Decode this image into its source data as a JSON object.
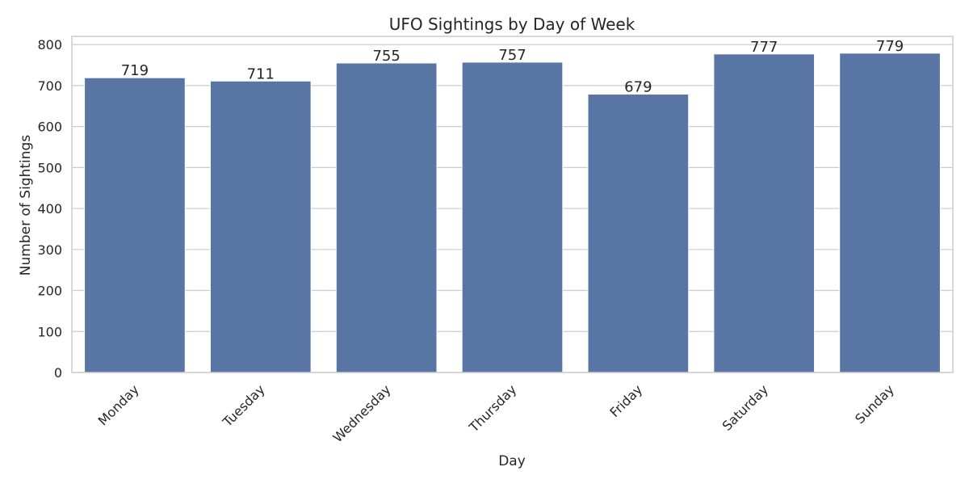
{
  "chart_data": {
    "type": "bar",
    "title": "UFO Sightings by Day of Week",
    "xlabel": "Day",
    "ylabel": "Number of Sightings",
    "categories": [
      "Monday",
      "Tuesday",
      "Wednesday",
      "Thursday",
      "Friday",
      "Saturday",
      "Sunday"
    ],
    "values": [
      719,
      711,
      755,
      757,
      679,
      777,
      779
    ],
    "value_labels": [
      "719",
      "711",
      "755",
      "757",
      "679",
      "777",
      "779"
    ],
    "ylim": [
      0,
      820
    ],
    "yticks": [
      0,
      100,
      200,
      300,
      400,
      500,
      600,
      700,
      800
    ],
    "ytick_labels": [
      "0",
      "100",
      "200",
      "300",
      "400",
      "500",
      "600",
      "700",
      "800"
    ],
    "grid": "horizontal",
    "x_tick_rotation": "45 degrees",
    "colors": {
      "bar": "#5975a4",
      "grid": "#cccccc",
      "frame": "#cccccc",
      "text": "#262626"
    }
  }
}
